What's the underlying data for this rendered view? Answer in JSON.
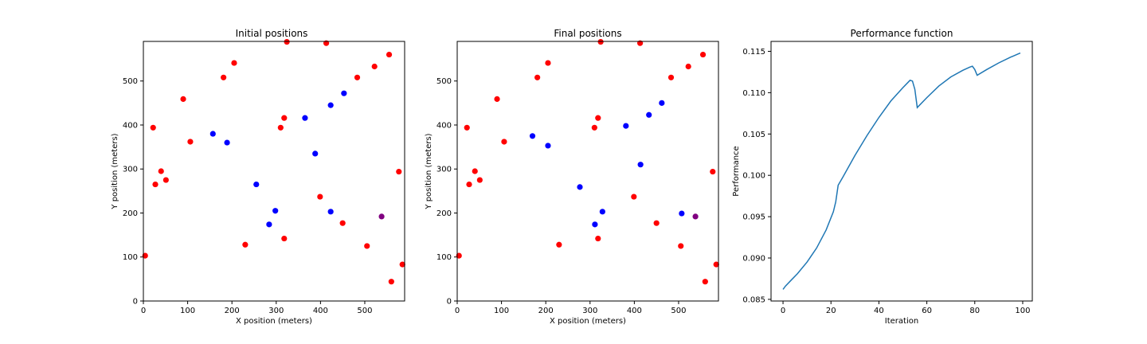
{
  "chart_data": [
    {
      "type": "scatter",
      "title": "Initial positions",
      "xlabel": "X position (meters)",
      "ylabel": "Y position (meters)",
      "xlim": [
        0,
        590
      ],
      "ylim": [
        0,
        590
      ],
      "xticks": [
        0,
        100,
        200,
        300,
        400,
        500
      ],
      "yticks": [
        0,
        100,
        200,
        300,
        400,
        500
      ],
      "series": [
        {
          "color": "#ff0000",
          "x": [
            4,
            22,
            27,
            40,
            51,
            90,
            106,
            181,
            205,
            230,
            310,
            318,
            318,
            324,
            399,
            413,
            450,
            483,
            505,
            522,
            555,
            560,
            577,
            585
          ],
          "y": [
            103,
            394,
            265,
            295,
            275,
            459,
            362,
            508,
            541,
            128,
            394,
            416,
            142,
            589,
            237,
            586,
            177,
            508,
            125,
            533,
            560,
            44,
            294,
            83
          ]
        },
        {
          "color": "#0000ff",
          "x": [
            157,
            189,
            255,
            284,
            298,
            365,
            388,
            423,
            423,
            453
          ],
          "y": [
            380,
            360,
            265,
            174,
            205,
            416,
            335,
            445,
            203,
            472
          ]
        },
        {
          "color": "#800080",
          "x": [
            538
          ],
          "y": [
            192
          ]
        }
      ]
    },
    {
      "type": "scatter",
      "title": "Final positions",
      "xlabel": "X position (meters)",
      "ylabel": "Y position (meters)",
      "xlim": [
        0,
        590
      ],
      "ylim": [
        0,
        590
      ],
      "xticks": [
        0,
        100,
        200,
        300,
        400,
        500
      ],
      "yticks": [
        0,
        100,
        200,
        300,
        400,
        500
      ],
      "series": [
        {
          "color": "#ff0000",
          "x": [
            4,
            22,
            27,
            40,
            51,
            90,
            106,
            181,
            205,
            230,
            310,
            318,
            318,
            324,
            399,
            413,
            450,
            483,
            505,
            522,
            555,
            560,
            577,
            585
          ],
          "y": [
            103,
            394,
            265,
            295,
            275,
            459,
            362,
            508,
            541,
            128,
            394,
            416,
            142,
            589,
            237,
            586,
            177,
            508,
            125,
            533,
            560,
            44,
            294,
            83
          ]
        },
        {
          "color": "#0000ff",
          "x": [
            170,
            205,
            277,
            311,
            328,
            381,
            414,
            433,
            462,
            507
          ],
          "y": [
            375,
            353,
            259,
            174,
            203,
            398,
            310,
            423,
            450,
            199
          ]
        },
        {
          "color": "#800080",
          "x": [
            538
          ],
          "y": [
            192
          ]
        }
      ]
    },
    {
      "type": "line",
      "title": "Performance function",
      "xlabel": "Iteration",
      "ylabel": "Performance",
      "xlim": [
        -5,
        104
      ],
      "ylim": [
        0.0848,
        0.1162
      ],
      "xticks": [
        0,
        20,
        40,
        60,
        80,
        100
      ],
      "yticks": [
        0.085,
        0.09,
        0.095,
        0.1,
        0.105,
        0.11,
        0.115
      ],
      "ytick_labels": [
        "0.085",
        "0.090",
        "0.095",
        "0.100",
        "0.105",
        "0.110",
        "0.115"
      ],
      "series": [
        {
          "color": "#1f77b4",
          "x": [
            0,
            1,
            3,
            6,
            10,
            14,
            18,
            21,
            22,
            23,
            25,
            30,
            35,
            40,
            45,
            50,
            53,
            54,
            55,
            56,
            60,
            65,
            70,
            75,
            78,
            79,
            80,
            81,
            85,
            90,
            95,
            99
          ],
          "y": [
            0.0862,
            0.0866,
            0.0872,
            0.0881,
            0.0895,
            0.0912,
            0.0934,
            0.0956,
            0.0968,
            0.0988,
            0.0998,
            0.1024,
            0.1048,
            0.107,
            0.109,
            0.1106,
            0.1115,
            0.1114,
            0.1104,
            0.1082,
            0.1094,
            0.1108,
            0.1119,
            0.1127,
            0.1131,
            0.1132,
            0.1128,
            0.1121,
            0.1128,
            0.1136,
            0.1143,
            0.1148
          ]
        }
      ]
    }
  ]
}
